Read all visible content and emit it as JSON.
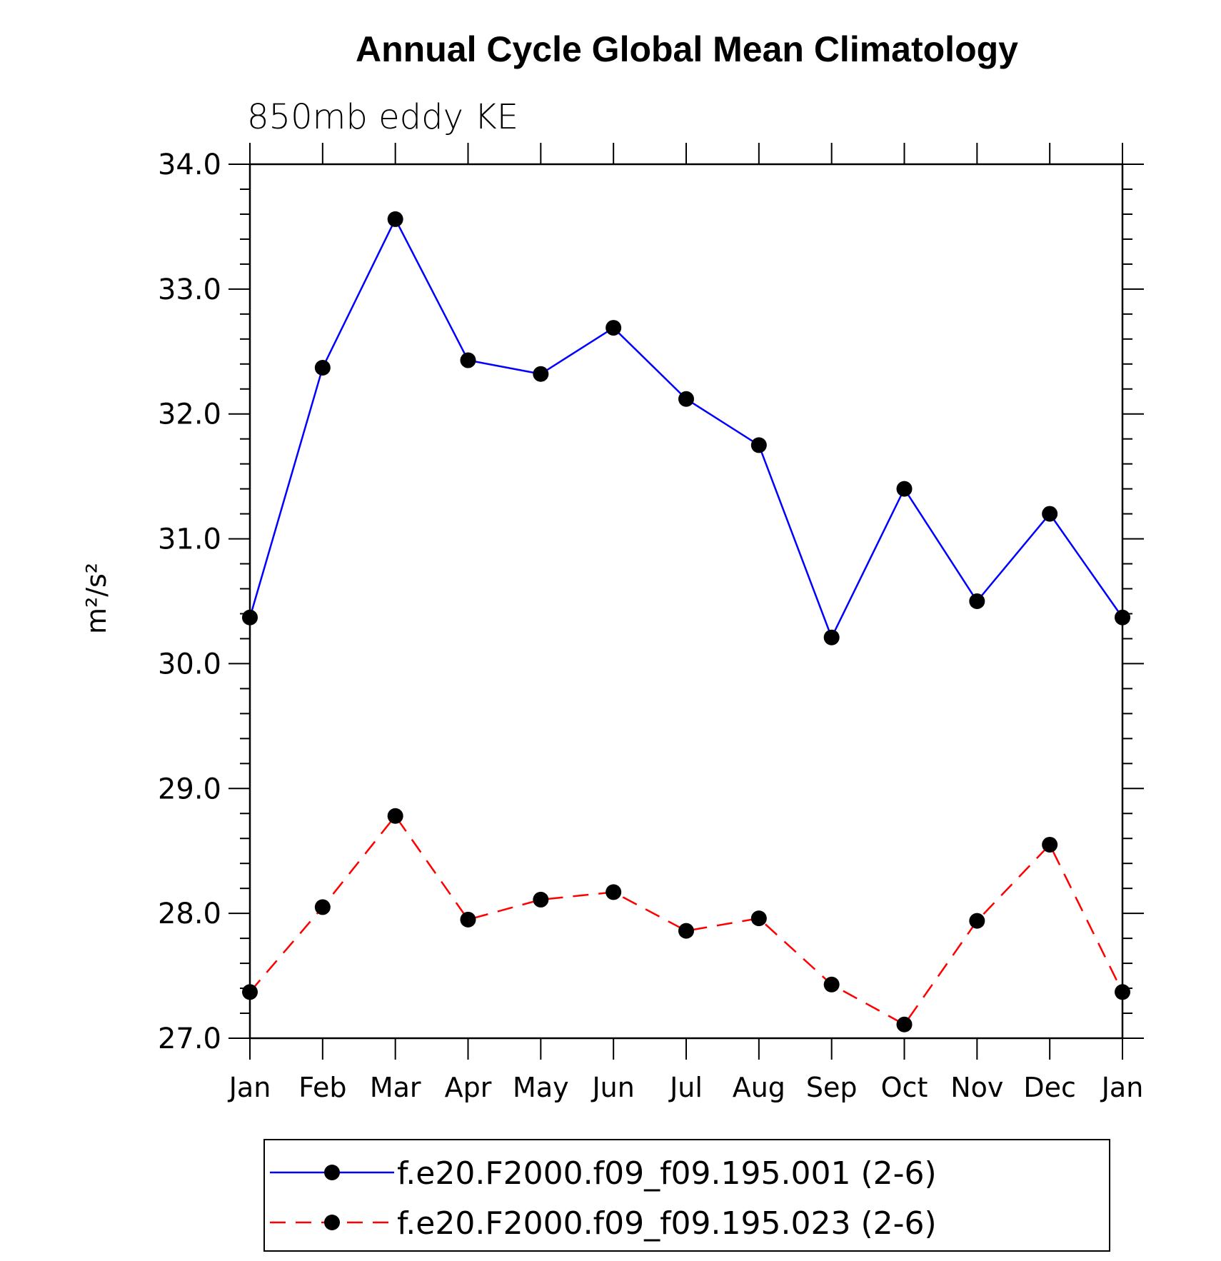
{
  "chart_data": {
    "type": "line",
    "title": "Annual Cycle Global Mean Climatology",
    "subtitle": "850mb eddy KE",
    "xlabel": "",
    "ylabel": "m²/s²",
    "ylim": [
      27.0,
      34.0
    ],
    "yticks": [
      "27.0",
      "28.0",
      "29.0",
      "30.0",
      "31.0",
      "32.0",
      "33.0",
      "34.0"
    ],
    "categories": [
      "Jan",
      "Feb",
      "Mar",
      "Apr",
      "May",
      "Jun",
      "Jul",
      "Aug",
      "Sep",
      "Oct",
      "Nov",
      "Dec",
      "Jan"
    ],
    "series": [
      {
        "name": "f.e20.F2000.f09_f09.195.001 (2-6)",
        "color": "#0000ff",
        "dash": "solid",
        "values": [
          30.37,
          32.37,
          33.56,
          32.43,
          32.32,
          32.69,
          32.12,
          31.75,
          30.21,
          31.4,
          30.5,
          31.2,
          30.37
        ]
      },
      {
        "name": "f.e20.F2000.f09_f09.195.023 (2-6)",
        "color": "#ff0000",
        "dash": "dashed",
        "values": [
          27.37,
          28.05,
          28.78,
          27.95,
          28.11,
          28.17,
          27.86,
          27.96,
          27.43,
          27.11,
          27.94,
          28.55,
          27.37
        ]
      }
    ],
    "legend_position": "bottom-center"
  }
}
